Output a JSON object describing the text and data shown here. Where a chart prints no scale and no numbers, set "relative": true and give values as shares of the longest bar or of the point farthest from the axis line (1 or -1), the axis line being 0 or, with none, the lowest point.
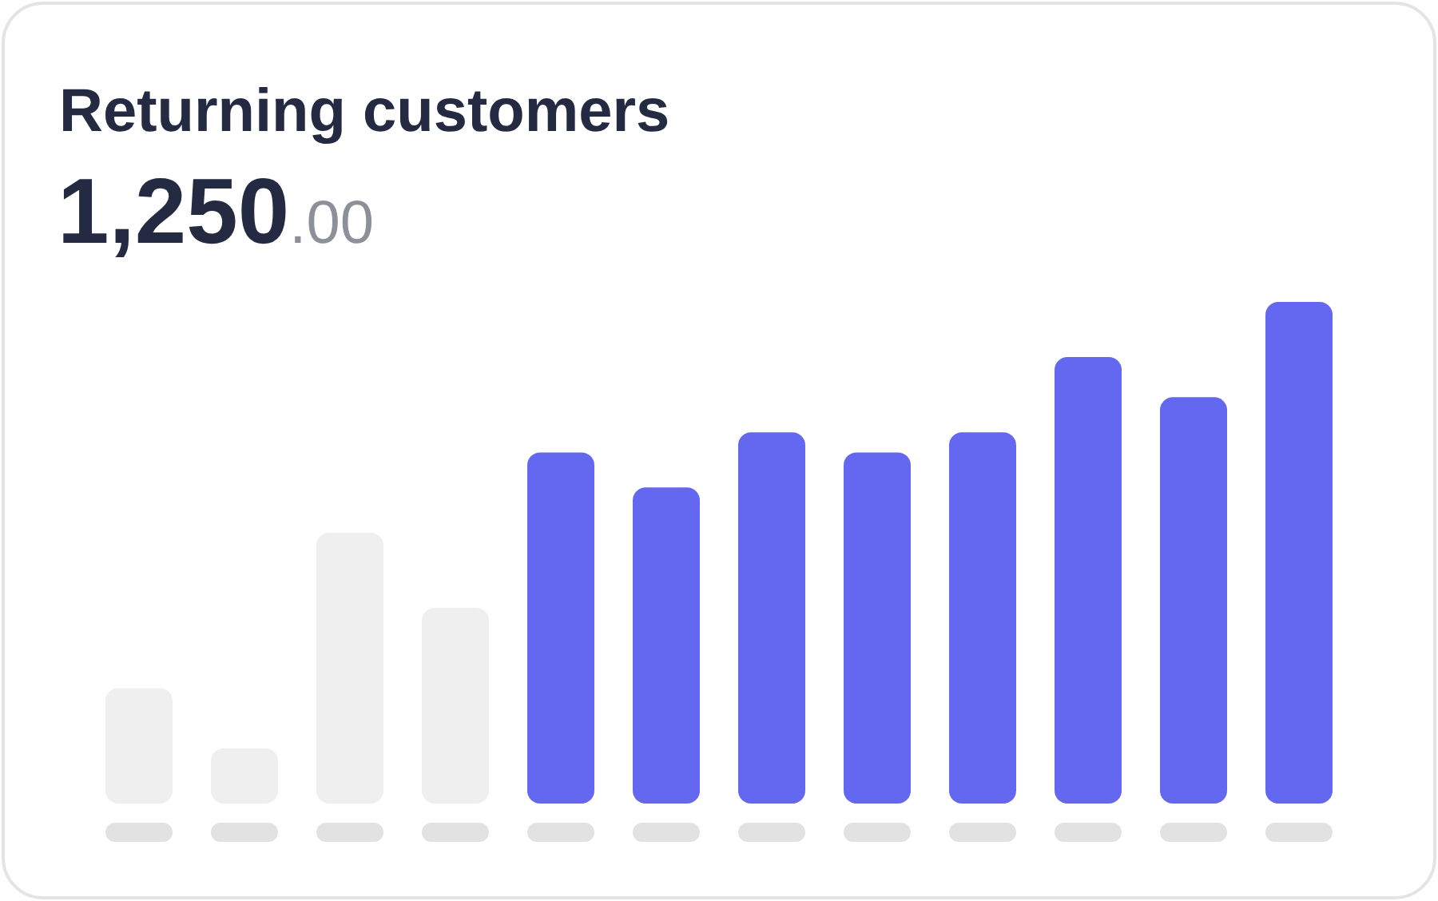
{
  "chart_data": {
    "type": "bar",
    "title": "Returning customers",
    "subtitle": "1,250.00",
    "categories": [
      null,
      null,
      null,
      null,
      null,
      null,
      null,
      null,
      null,
      null,
      null,
      null
    ],
    "values": [
      0.23,
      0.11,
      0.54,
      0.39,
      0.7,
      0.63,
      0.74,
      0.7,
      0.74,
      0.89,
      0.81,
      1
    ],
    "colors": [
      "#efefef",
      "#efefef",
      "#efefef",
      "#efefef",
      "#6468f0",
      "#6468f0",
      "#6468f0",
      "#6468f0",
      "#6468f0",
      "#6468f0",
      "#6468f0",
      "#6468f0"
    ],
    "relative": true
  }
}
